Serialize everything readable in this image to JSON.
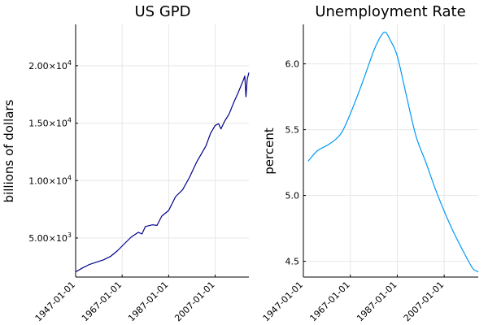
{
  "chart_data": [
    {
      "type": "line",
      "title": "US GPD",
      "xlabel": "",
      "ylabel": "billions of dollars",
      "x_kind": "date",
      "xlim": [
        "1947-01-01",
        "2021-07-01"
      ],
      "ylim": [
        1600,
        23600
      ],
      "x_ticks": [
        "1947-01-01",
        "1967-01-01",
        "1987-01-01",
        "2007-01-01"
      ],
      "y_ticks": [
        {
          "value": 5000,
          "mantissa": "5.00",
          "exponent": "3"
        },
        {
          "value": 10000,
          "mantissa": "1.00",
          "exponent": "4"
        },
        {
          "value": 15000,
          "mantissa": "1.50",
          "exponent": "4"
        },
        {
          "value": 20000,
          "mantissa": "2.00",
          "exponent": "4"
        }
      ],
      "grid": true,
      "legend": "none",
      "color": "#00008b",
      "series": [
        {
          "x": [
            "1947-01-01",
            "1950-01-01",
            "1953-01-01",
            "1956-01-01",
            "1959-01-01",
            "1962-01-01",
            "1965-01-01",
            "1968-01-01",
            "1971-01-01",
            "1974-01-01",
            "1975-07-01",
            "1977-01-01",
            "1980-01-01",
            "1982-01-01",
            "1984-01-01",
            "1987-01-01",
            "1990-01-01",
            "1993-01-01",
            "1996-01-01",
            "1999-01-01",
            "2001-01-01",
            "2003-01-01",
            "2005-01-01",
            "2007-01-01",
            "2008-07-01",
            "2009-07-01",
            "2011-01-01",
            "2013-01-01",
            "2015-01-01",
            "2017-01-01",
            "2019-01-01",
            "2019-10-01",
            "2020-04-01",
            "2020-10-01",
            "2021-07-01"
          ],
          "y": [
            2050,
            2400,
            2700,
            2900,
            3100,
            3400,
            3900,
            4500,
            5100,
            5500,
            5350,
            6000,
            6150,
            6100,
            6900,
            7400,
            8600,
            9200,
            10300,
            11600,
            12300,
            13000,
            14100,
            14800,
            14950,
            14500,
            15150,
            15800,
            16800,
            17700,
            18700,
            19100,
            17300,
            18800,
            19400
          ]
        }
      ]
    },
    {
      "type": "line",
      "title": "Unemployment Rate",
      "xlabel": "",
      "ylabel": "percent",
      "x_kind": "date",
      "xlim": [
        "1947-01-01",
        "2021-07-01"
      ],
      "ylim": [
        4.38,
        6.3
      ],
      "x_ticks": [
        "1947-01-01",
        "1967-01-01",
        "1987-01-01",
        "2007-01-01"
      ],
      "y_ticks": [
        {
          "value": 4.5,
          "label": "4.5"
        },
        {
          "value": 5.0,
          "label": "5.0"
        },
        {
          "value": 5.5,
          "label": "5.5"
        },
        {
          "value": 6.0,
          "label": "6.0"
        }
      ],
      "grid": true,
      "legend": "none",
      "color": "#009af9",
      "series": [
        {
          "x": [
            "1949-01-01",
            "1953-01-01",
            "1958-01-01",
            "1963-01-01",
            "1967-01-01",
            "1972-01-01",
            "1977-01-01",
            "1980-01-01",
            "1982-01-01",
            "1984-01-01",
            "1987-01-01",
            "1991-01-01",
            "1995-01-01",
            "1999-01-01",
            "2003-01-01",
            "2007-01-01",
            "2011-01-01",
            "2015-01-01",
            "2019-01-01",
            "2021-07-01"
          ],
          "y": [
            5.26,
            5.34,
            5.39,
            5.47,
            5.62,
            5.85,
            6.1,
            6.21,
            6.24,
            6.18,
            6.06,
            5.75,
            5.45,
            5.26,
            5.06,
            4.88,
            4.72,
            4.58,
            4.45,
            4.42
          ]
        }
      ]
    }
  ]
}
